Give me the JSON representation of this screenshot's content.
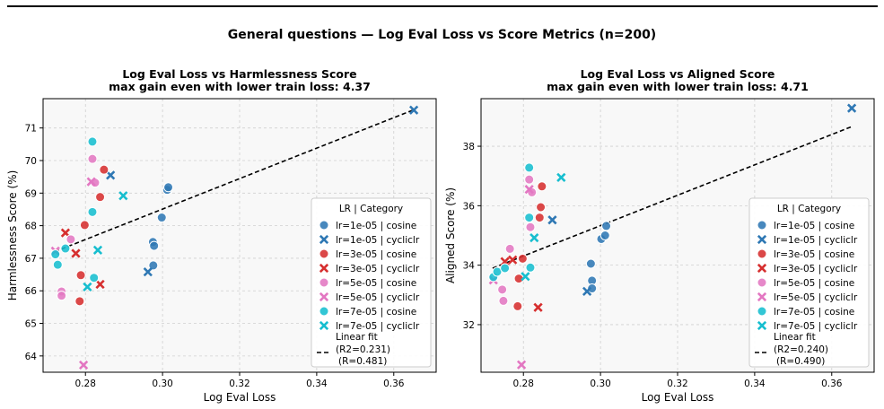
{
  "figure": {
    "suptitle": "General questions — Log Eval Loss vs Score Metrics (n=200)"
  },
  "chart_data": [
    {
      "type": "scatter",
      "title": "Log Eval Loss vs Harmlessness Score",
      "subtitle": "max gain even with lower train loss: 4.37",
      "xlabel": "Log Eval Loss",
      "ylabel": "Harmlessness Score (%)",
      "xlim": [
        0.269,
        0.371
      ],
      "ylim": [
        63.5,
        71.9
      ],
      "xticks": [
        "0.28",
        "0.30",
        "0.32",
        "0.34",
        "0.36"
      ],
      "yticks": [
        "64",
        "65",
        "66",
        "67",
        "68",
        "69",
        "70",
        "71"
      ],
      "grid": true,
      "legend": {
        "title": "LR | Category",
        "placement": "lower-right"
      },
      "fit": {
        "label": "Linear fit",
        "r2": "(R2=0.231)",
        "r": "(R=0.481)",
        "from": [
          0.272,
          67.2
        ],
        "to": [
          0.365,
          71.55
        ]
      },
      "series": [
        {
          "name": "lr=1e-05 | cosine",
          "color": "#2f78b4",
          "marker": "circle",
          "points": [
            [
              0.2975,
              67.5
            ],
            [
              0.2978,
              67.38
            ],
            [
              0.2976,
              66.78
            ],
            [
              0.2998,
              68.25
            ],
            [
              0.3012,
              69.1
            ],
            [
              0.3015,
              69.18
            ]
          ]
        },
        {
          "name": "lr=1e-05 | cycliclr",
          "color": "#2f78b4",
          "marker": "x",
          "points": [
            [
              0.2865,
              69.55
            ],
            [
              0.2962,
              66.58
            ],
            [
              0.3652,
              71.55
            ]
          ]
        },
        {
          "name": "lr=3e-05 | cosine",
          "color": "#d62f2f",
          "marker": "circle",
          "points": [
            [
              0.2785,
              65.68
            ],
            [
              0.2788,
              66.48
            ],
            [
              0.2798,
              68.02
            ],
            [
              0.2838,
              68.88
            ],
            [
              0.2848,
              69.72
            ]
          ]
        },
        {
          "name": "lr=3e-05 | cycliclr",
          "color": "#d62f2f",
          "marker": "x",
          "points": [
            [
              0.2748,
              67.78
            ],
            [
              0.2775,
              67.15
            ],
            [
              0.2838,
              66.2
            ]
          ]
        },
        {
          "name": "lr=5e-05 | cosine",
          "color": "#e377c2",
          "marker": "circle",
          "points": [
            [
              0.2738,
              65.98
            ],
            [
              0.2738,
              65.85
            ],
            [
              0.2762,
              67.58
            ],
            [
              0.2818,
              70.05
            ],
            [
              0.2825,
              69.32
            ]
          ]
        },
        {
          "name": "lr=5e-05 | cycliclr",
          "color": "#e377c2",
          "marker": "x",
          "points": [
            [
              0.2722,
              67.22
            ],
            [
              0.2795,
              63.72
            ],
            [
              0.2815,
              69.35
            ]
          ]
        },
        {
          "name": "lr=7e-05 | cosine",
          "color": "#17becf",
          "marker": "circle",
          "points": [
            [
              0.2722,
              67.12
            ],
            [
              0.2728,
              66.8
            ],
            [
              0.2748,
              67.3
            ],
            [
              0.2818,
              68.42
            ],
            [
              0.2818,
              70.58
            ],
            [
              0.2822,
              66.4
            ]
          ]
        },
        {
          "name": "lr=7e-05 | cycliclr",
          "color": "#17becf",
          "marker": "x",
          "points": [
            [
              0.2805,
              66.12
            ],
            [
              0.2832,
              67.25
            ],
            [
              0.2898,
              68.92
            ]
          ]
        }
      ]
    },
    {
      "type": "scatter",
      "title": "Log Eval Loss vs Aligned Score",
      "subtitle": "max gain even with lower train loss: 4.71",
      "xlabel": "Log Eval Loss",
      "ylabel": "Aligned Score (%)",
      "xlim": [
        0.269,
        0.371
      ],
      "ylim": [
        30.4,
        39.6
      ],
      "xticks": [
        "0.28",
        "0.30",
        "0.32",
        "0.34",
        "0.36"
      ],
      "yticks": [
        "32",
        "34",
        "36",
        "38"
      ],
      "grid": true,
      "legend": {
        "title": "LR | Category",
        "placement": "lower-right"
      },
      "fit": {
        "label": "Linear fit",
        "r2": "(R2=0.240)",
        "r": "(R=0.490)",
        "from": [
          0.272,
          33.9
        ],
        "to": [
          0.365,
          38.65
        ]
      },
      "series": [
        {
          "name": "lr=1e-05 | cosine",
          "color": "#2f78b4",
          "marker": "circle",
          "points": [
            [
              0.2975,
              34.05
            ],
            [
              0.2978,
              33.48
            ],
            [
              0.2978,
              33.22
            ],
            [
              0.3002,
              34.88
            ],
            [
              0.3012,
              35.0
            ],
            [
              0.3015,
              35.32
            ]
          ]
        },
        {
          "name": "lr=1e-05 | cycliclr",
          "color": "#2f78b4",
          "marker": "x",
          "points": [
            [
              0.2875,
              35.52
            ],
            [
              0.2965,
              33.12
            ],
            [
              0.3652,
              39.28
            ]
          ]
        },
        {
          "name": "lr=3e-05 | cosine",
          "color": "#d62f2f",
          "marker": "circle",
          "points": [
            [
              0.2785,
              32.62
            ],
            [
              0.2788,
              33.55
            ],
            [
              0.2798,
              34.22
            ],
            [
              0.2842,
              35.6
            ],
            [
              0.2845,
              35.95
            ],
            [
              0.2848,
              36.65
            ]
          ]
        },
        {
          "name": "lr=3e-05 | cycliclr",
          "color": "#d62f2f",
          "marker": "x",
          "points": [
            [
              0.2752,
              34.12
            ],
            [
              0.2772,
              34.18
            ],
            [
              0.2838,
              32.58
            ]
          ]
        },
        {
          "name": "lr=5e-05 | cosine",
          "color": "#e377c2",
          "marker": "circle",
          "points": [
            [
              0.2745,
              33.18
            ],
            [
              0.2748,
              32.8
            ],
            [
              0.2765,
              34.55
            ],
            [
              0.2815,
              36.88
            ],
            [
              0.2822,
              36.45
            ],
            [
              0.2818,
              35.28
            ]
          ]
        },
        {
          "name": "lr=5e-05 | cycliclr",
          "color": "#e377c2",
          "marker": "x",
          "points": [
            [
              0.2722,
              33.5
            ],
            [
              0.2795,
              30.65
            ],
            [
              0.2815,
              36.55
            ]
          ]
        },
        {
          "name": "lr=7e-05 | cosine",
          "color": "#17becf",
          "marker": "circle",
          "points": [
            [
              0.2722,
              33.6
            ],
            [
              0.2732,
              33.78
            ],
            [
              0.2752,
              33.9
            ],
            [
              0.2815,
              37.28
            ],
            [
              0.2815,
              35.6
            ],
            [
              0.2818,
              33.92
            ]
          ]
        },
        {
          "name": "lr=7e-05 | cycliclr",
          "color": "#17becf",
          "marker": "x",
          "points": [
            [
              0.2805,
              33.62
            ],
            [
              0.2828,
              34.92
            ],
            [
              0.2898,
              36.95
            ]
          ]
        }
      ]
    }
  ]
}
